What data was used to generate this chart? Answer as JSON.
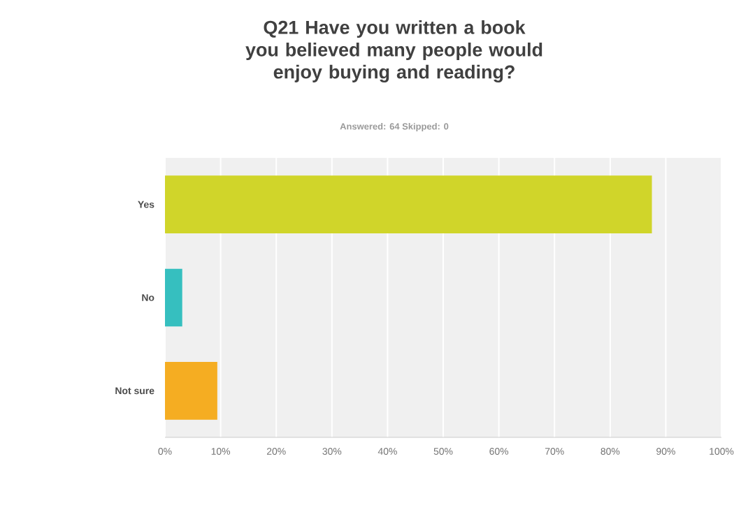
{
  "chart_data": {
    "type": "bar",
    "orientation": "horizontal",
    "title": "Q21 Have you written a book you believed many people would enjoy buying and reading?",
    "subtitle": "Answered: 64    Skipped: 0",
    "categories": [
      "Yes",
      "No",
      "Not sure"
    ],
    "values": [
      87.5,
      3.1,
      9.4
    ],
    "colors": [
      "#d0d52a",
      "#36bfbf",
      "#f5ad22"
    ],
    "xlim": [
      0,
      100
    ],
    "xticks": [
      {
        "value": 0,
        "label": "0%"
      },
      {
        "value": 10,
        "label": "10%"
      },
      {
        "value": 20,
        "label": "20%"
      },
      {
        "value": 30,
        "label": "30%"
      },
      {
        "value": 40,
        "label": "40%"
      },
      {
        "value": 50,
        "label": "50%"
      },
      {
        "value": 60,
        "label": "60%"
      },
      {
        "value": 70,
        "label": "70%"
      },
      {
        "value": 80,
        "label": "80%"
      },
      {
        "value": 90,
        "label": "90%"
      },
      {
        "value": 100,
        "label": "100%"
      }
    ],
    "grid": "x"
  }
}
